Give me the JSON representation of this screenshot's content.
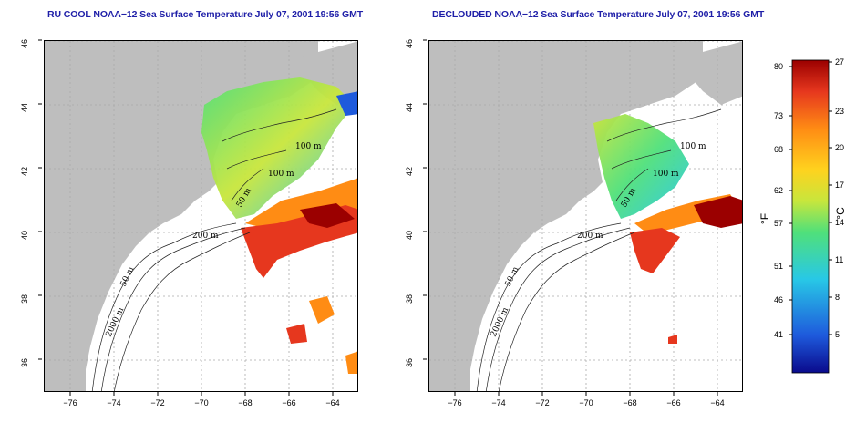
{
  "titles": {
    "left": "RU COOL NOAA−12 Sea Surface Temperature July 07, 2001 19:56 GMT",
    "right": "DECLOUDED NOAA−12 Sea Surface Temperature July 07, 2001 19:56 GMT"
  },
  "axes": {
    "x_ticks": [
      "−76",
      "−74",
      "−72",
      "−70",
      "−68",
      "−66",
      "−64"
    ],
    "y_ticks": [
      "46",
      "44",
      "42",
      "40",
      "38",
      "36"
    ],
    "x_range": [
      -77.2,
      -63.0
    ],
    "y_range": [
      35.2,
      46.2
    ]
  },
  "contours": {
    "labels_left": [
      "100 m",
      "100 m",
      "50 m",
      "200 m",
      "50 m",
      "2000 m"
    ],
    "labels_right": [
      "100 m",
      "100 m",
      "50 m",
      "200 m",
      "50 m",
      "2000 m"
    ]
  },
  "colorbar": {
    "fahrenheit_ticks": [
      "80",
      "73",
      "68",
      "62",
      "57",
      "51",
      "46",
      "41"
    ],
    "celsius_ticks": [
      "27",
      "23",
      "20",
      "17",
      "14",
      "11",
      "8",
      "5"
    ],
    "fahrenheit_unit": "°F",
    "celsius_unit": "°C",
    "range_c": [
      2,
      27
    ],
    "colors": [
      "#0a0a8c",
      "#1e5adc",
      "#28c8e6",
      "#50e07a",
      "#c8e63c",
      "#ffd21e",
      "#ff8c14",
      "#e6371e",
      "#9b0000"
    ]
  },
  "colors": {
    "land": "#bebebe",
    "ocean": "#ffffff",
    "grid": "#aaaaaa",
    "title": "#1f1fa8"
  }
}
